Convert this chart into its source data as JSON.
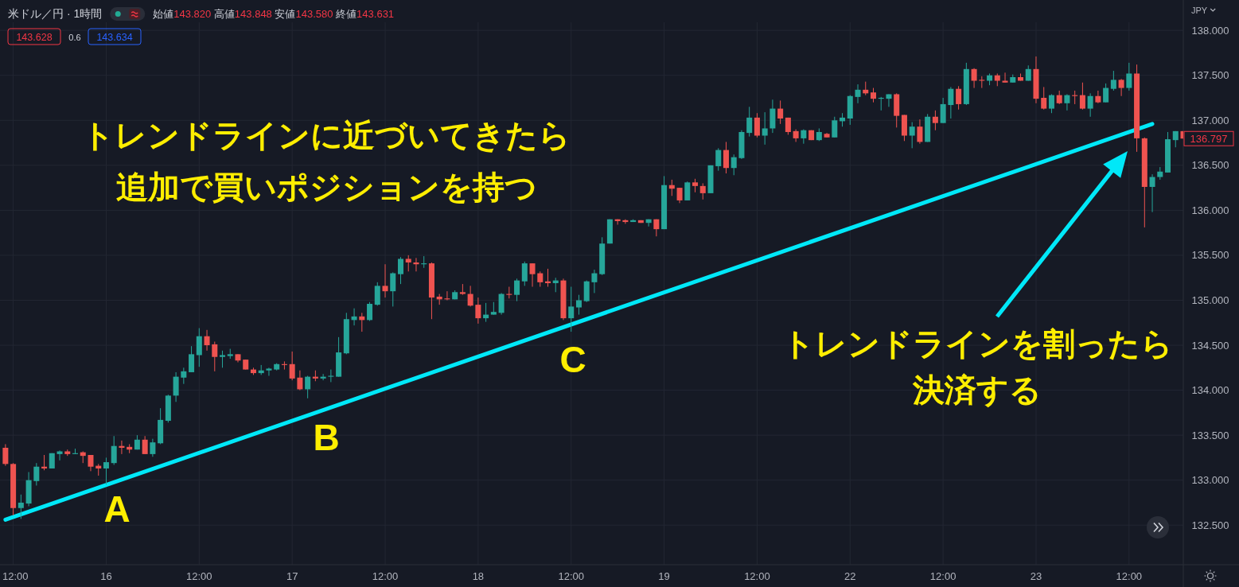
{
  "chart_data": {
    "type": "candlestick",
    "title": "米ドル／円 · 1時間",
    "subtitle": "始値143.820 高値143.848 安値143.580 終値143.631",
    "ylabel": "JPY",
    "categories": [
      null,
      "12:00",
      null,
      null,
      null,
      null,
      null,
      null,
      null,
      null,
      null,
      null,
      null,
      "16",
      null,
      null,
      null,
      null,
      null,
      null,
      null,
      null,
      null,
      null,
      null,
      "12:00",
      null,
      null,
      null,
      null,
      null,
      null,
      null,
      null,
      null,
      null,
      null,
      "17",
      null,
      null,
      null,
      null,
      null,
      null,
      null,
      null,
      null,
      null,
      null,
      "12:00",
      null,
      null,
      null,
      null,
      null,
      null,
      null,
      null,
      null,
      null,
      null,
      "18",
      null,
      null,
      null,
      null,
      null,
      null,
      null,
      null,
      null,
      null,
      null,
      "12:00",
      null,
      null,
      null,
      null,
      null,
      null,
      null,
      null,
      null,
      null,
      null,
      "19",
      null,
      null,
      null,
      null,
      null,
      null,
      null,
      null,
      null,
      null,
      null,
      "12:00",
      null,
      null,
      null,
      null,
      null,
      null,
      null,
      null,
      null,
      null,
      null,
      "22",
      null,
      null,
      null,
      null,
      null,
      null,
      null,
      null,
      null,
      null,
      null,
      "12:00",
      null,
      null,
      null,
      null,
      null,
      null,
      null,
      null,
      null,
      null,
      null,
      "23",
      null,
      null,
      null,
      null,
      null,
      null,
      null,
      null,
      null,
      null,
      null,
      "12:00",
      null,
      null,
      null,
      null,
      null,
      null,
      null
    ],
    "ohlc": [
      [
        133.36,
        133.4,
        133.16,
        133.18
      ],
      [
        133.18,
        133.19,
        132.61,
        132.69
      ],
      [
        132.69,
        132.84,
        132.57,
        132.75
      ],
      [
        132.74,
        133.09,
        132.71,
        133.0
      ],
      [
        132.99,
        133.19,
        132.94,
        133.15
      ],
      [
        133.15,
        133.28,
        133.11,
        133.13
      ],
      [
        133.13,
        133.3,
        133.13,
        133.3
      ],
      [
        133.29,
        133.33,
        133.22,
        133.32
      ],
      [
        133.32,
        133.34,
        133.27,
        133.29
      ],
      [
        133.29,
        133.35,
        133.29,
        133.3
      ],
      [
        133.31,
        133.32,
        133.19,
        133.27
      ],
      [
        133.28,
        133.28,
        133.1,
        133.15
      ],
      [
        133.16,
        133.18,
        133.05,
        133.13
      ],
      [
        133.13,
        133.25,
        132.95,
        133.2
      ],
      [
        133.19,
        133.49,
        133.17,
        133.38
      ],
      [
        133.38,
        133.44,
        133.29,
        133.36
      ],
      [
        133.37,
        133.4,
        133.3,
        133.34
      ],
      [
        133.34,
        133.5,
        133.34,
        133.45
      ],
      [
        133.45,
        133.49,
        133.29,
        133.29
      ],
      [
        133.29,
        133.46,
        133.26,
        133.42
      ],
      [
        133.41,
        133.8,
        133.4,
        133.67
      ],
      [
        133.66,
        133.95,
        133.64,
        133.94
      ],
      [
        133.94,
        134.2,
        133.87,
        134.15
      ],
      [
        134.14,
        134.25,
        134.07,
        134.21
      ],
      [
        134.2,
        134.49,
        134.2,
        134.4
      ],
      [
        134.39,
        134.69,
        134.26,
        134.6
      ],
      [
        134.6,
        134.67,
        134.44,
        134.5
      ],
      [
        134.51,
        134.54,
        134.21,
        134.37
      ],
      [
        134.37,
        134.44,
        134.25,
        134.39
      ],
      [
        134.38,
        134.46,
        134.35,
        134.4
      ],
      [
        134.4,
        134.4,
        134.31,
        134.33
      ],
      [
        134.34,
        134.34,
        134.23,
        134.23
      ],
      [
        134.23,
        134.25,
        134.17,
        134.19
      ],
      [
        134.19,
        134.28,
        134.17,
        134.22
      ],
      [
        134.22,
        134.25,
        134.16,
        134.24
      ],
      [
        134.23,
        134.3,
        134.22,
        134.29
      ],
      [
        134.29,
        134.32,
        134.23,
        134.28
      ],
      [
        134.29,
        134.43,
        134.11,
        134.13
      ],
      [
        134.14,
        134.22,
        134.0,
        134.01
      ],
      [
        134.01,
        134.16,
        133.91,
        134.15
      ],
      [
        134.15,
        134.22,
        134.1,
        134.13
      ],
      [
        134.13,
        134.18,
        134.11,
        134.15
      ],
      [
        134.15,
        134.23,
        134.09,
        134.16
      ],
      [
        134.15,
        134.59,
        134.15,
        134.42
      ],
      [
        134.41,
        134.86,
        134.4,
        134.79
      ],
      [
        134.78,
        134.91,
        134.72,
        134.82
      ],
      [
        134.82,
        134.86,
        134.65,
        134.78
      ],
      [
        134.78,
        134.98,
        134.77,
        134.96
      ],
      [
        134.95,
        135.2,
        134.94,
        135.16
      ],
      [
        135.16,
        135.4,
        135.03,
        135.1
      ],
      [
        135.1,
        135.31,
        134.93,
        135.3
      ],
      [
        135.29,
        135.48,
        135.18,
        135.46
      ],
      [
        135.46,
        135.5,
        135.32,
        135.42
      ],
      [
        135.42,
        135.47,
        135.32,
        135.4
      ],
      [
        135.4,
        135.49,
        135.36,
        135.41
      ],
      [
        135.41,
        135.42,
        134.79,
        135.03
      ],
      [
        135.04,
        135.07,
        134.95,
        135.01
      ],
      [
        135.02,
        135.1,
        135.0,
        135.01
      ],
      [
        135.01,
        135.11,
        135.01,
        135.09
      ],
      [
        135.09,
        135.18,
        135.06,
        135.07
      ],
      [
        135.07,
        135.16,
        134.93,
        134.94
      ],
      [
        134.95,
        135.03,
        134.74,
        134.8
      ],
      [
        134.8,
        134.97,
        134.76,
        134.84
      ],
      [
        134.84,
        134.98,
        134.84,
        134.87
      ],
      [
        134.86,
        135.08,
        134.84,
        135.07
      ],
      [
        135.07,
        135.15,
        135.02,
        135.06
      ],
      [
        135.06,
        135.24,
        134.99,
        135.22
      ],
      [
        135.21,
        135.43,
        135.16,
        135.41
      ],
      [
        135.41,
        135.41,
        135.15,
        135.29
      ],
      [
        135.3,
        135.32,
        135.15,
        135.2
      ],
      [
        135.21,
        135.35,
        135.15,
        135.19
      ],
      [
        135.19,
        135.25,
        135.09,
        135.22
      ],
      [
        135.22,
        135.24,
        134.78,
        134.8
      ],
      [
        134.8,
        135.15,
        134.65,
        134.93
      ],
      [
        134.92,
        135.06,
        134.84,
        135.0
      ],
      [
        134.99,
        135.22,
        134.98,
        135.21
      ],
      [
        135.2,
        135.34,
        135.08,
        135.3
      ],
      [
        135.29,
        135.7,
        135.28,
        135.63
      ],
      [
        135.63,
        135.9,
        135.63,
        135.9
      ],
      [
        135.9,
        135.9,
        135.84,
        135.88
      ],
      [
        135.89,
        135.9,
        135.85,
        135.87
      ],
      [
        135.87,
        135.9,
        135.87,
        135.89
      ],
      [
        135.89,
        135.89,
        135.86,
        135.86
      ],
      [
        135.86,
        135.9,
        135.82,
        135.9
      ],
      [
        135.9,
        135.9,
        135.71,
        135.79
      ],
      [
        135.79,
        136.38,
        135.79,
        136.28
      ],
      [
        136.28,
        136.34,
        136.16,
        136.24
      ],
      [
        136.25,
        136.25,
        136.08,
        136.11
      ],
      [
        136.11,
        136.32,
        136.11,
        136.31
      ],
      [
        136.31,
        136.35,
        136.2,
        136.27
      ],
      [
        136.27,
        136.3,
        136.12,
        136.19
      ],
      [
        136.19,
        136.5,
        136.19,
        136.5
      ],
      [
        136.49,
        136.69,
        136.44,
        136.67
      ],
      [
        136.67,
        136.76,
        136.41,
        136.47
      ],
      [
        136.47,
        136.62,
        136.39,
        136.59
      ],
      [
        136.58,
        136.89,
        136.57,
        136.87
      ],
      [
        136.86,
        137.15,
        136.82,
        137.03
      ],
      [
        137.03,
        137.08,
        136.81,
        136.83
      ],
      [
        136.83,
        137.09,
        136.73,
        136.91
      ],
      [
        136.91,
        137.23,
        136.86,
        137.13
      ],
      [
        137.13,
        137.22,
        136.96,
        137.02
      ],
      [
        137.03,
        137.03,
        136.84,
        136.87
      ],
      [
        136.88,
        136.9,
        136.76,
        136.8
      ],
      [
        136.8,
        136.9,
        136.74,
        136.89
      ],
      [
        136.89,
        136.89,
        136.78,
        136.78
      ],
      [
        136.78,
        136.91,
        136.77,
        136.87
      ],
      [
        136.85,
        136.86,
        136.81,
        136.81
      ],
      [
        136.81,
        137.04,
        136.81,
        137.0
      ],
      [
        136.99,
        137.08,
        136.93,
        137.03
      ],
      [
        137.02,
        137.28,
        136.95,
        137.27
      ],
      [
        137.26,
        137.4,
        137.19,
        137.34
      ],
      [
        137.34,
        137.43,
        137.28,
        137.3
      ],
      [
        137.31,
        137.36,
        137.2,
        137.24
      ],
      [
        137.24,
        137.26,
        137.11,
        137.25
      ],
      [
        137.24,
        137.29,
        137.15,
        137.29
      ],
      [
        137.29,
        137.3,
        136.92,
        137.05
      ],
      [
        137.06,
        137.06,
        136.77,
        136.83
      ],
      [
        136.83,
        136.98,
        136.69,
        136.93
      ],
      [
        136.93,
        137.01,
        136.74,
        136.76
      ],
      [
        136.76,
        137.07,
        136.76,
        137.04
      ],
      [
        137.04,
        137.11,
        136.89,
        136.97
      ],
      [
        136.97,
        137.25,
        136.97,
        137.18
      ],
      [
        137.17,
        137.37,
        137.02,
        137.35
      ],
      [
        137.35,
        137.38,
        137.12,
        137.18
      ],
      [
        137.18,
        137.64,
        137.17,
        137.57
      ],
      [
        137.57,
        137.58,
        137.36,
        137.44
      ],
      [
        137.45,
        137.49,
        137.36,
        137.44
      ],
      [
        137.44,
        137.52,
        137.39,
        137.5
      ],
      [
        137.5,
        137.52,
        137.38,
        137.44
      ],
      [
        137.44,
        137.53,
        137.42,
        137.42
      ],
      [
        137.42,
        137.51,
        137.42,
        137.48
      ],
      [
        137.48,
        137.52,
        137.44,
        137.44
      ],
      [
        137.44,
        137.61,
        137.44,
        137.57
      ],
      [
        137.57,
        137.71,
        137.19,
        137.24
      ],
      [
        137.25,
        137.37,
        137.12,
        137.13
      ],
      [
        137.13,
        137.29,
        137.08,
        137.28
      ],
      [
        137.28,
        137.33,
        137.18,
        137.19
      ],
      [
        137.19,
        137.29,
        137.11,
        137.28
      ],
      [
        137.28,
        137.33,
        137.18,
        137.27
      ],
      [
        137.28,
        137.42,
        137.12,
        137.13
      ],
      [
        137.13,
        137.3,
        137.04,
        137.27
      ],
      [
        137.27,
        137.33,
        137.19,
        137.2
      ],
      [
        137.2,
        137.41,
        137.2,
        137.36
      ],
      [
        137.35,
        137.55,
        137.33,
        137.45
      ],
      [
        137.45,
        137.46,
        137.27,
        137.36
      ],
      [
        137.36,
        137.64,
        137.33,
        137.52
      ],
      [
        137.52,
        137.62,
        136.65,
        136.8
      ],
      [
        136.8,
        136.81,
        135.81,
        136.26
      ],
      [
        136.26,
        136.4,
        135.98,
        136.37
      ],
      [
        136.37,
        136.48,
        136.34,
        136.43
      ],
      [
        136.42,
        136.87,
        136.42,
        136.79
      ],
      [
        136.78,
        136.88,
        136.7,
        136.88
      ],
      [
        136.88,
        136.88,
        136.797,
        136.797
      ]
    ],
    "colors": [
      "#ef5350",
      "#ef5350",
      "#26a69a",
      "#26a69a",
      "#26a69a",
      "#ef5350",
      "#26a69a",
      "#26a69a",
      "#ef5350",
      "#26a69a",
      "#ef5350",
      "#ef5350",
      "#ef5350",
      "#26a69a",
      "#26a69a",
      "#ef5350",
      "#ef5350",
      "#26a69a",
      "#ef5350",
      "#26a69a",
      "#26a69a",
      "#26a69a",
      "#26a69a",
      "#26a69a",
      "#26a69a",
      "#26a69a",
      "#ef5350",
      "#ef5350",
      "#26a69a",
      "#26a69a",
      "#ef5350",
      "#ef5350",
      "#ef5350",
      "#26a69a",
      "#26a69a",
      "#26a69a",
      "#ef5350",
      "#ef5350",
      "#ef5350",
      "#26a69a",
      "#ef5350",
      "#26a69a",
      "#26a69a",
      "#26a69a",
      "#26a69a",
      "#26a69a",
      "#ef5350",
      "#26a69a",
      "#26a69a",
      "#ef5350",
      "#26a69a",
      "#26a69a",
      "#ef5350",
      "#ef5350",
      "#26a69a",
      "#ef5350",
      "#ef5350",
      "#ef5350",
      "#26a69a",
      "#ef5350",
      "#ef5350",
      "#ef5350",
      "#26a69a",
      "#26a69a",
      "#26a69a",
      "#ef5350",
      "#26a69a",
      "#26a69a",
      "#ef5350",
      "#ef5350",
      "#ef5350",
      "#26a69a",
      "#ef5350",
      "#26a69a",
      "#26a69a",
      "#26a69a",
      "#26a69a",
      "#26a69a",
      "#26a69a",
      "#ef5350",
      "#ef5350",
      "#26a69a",
      "#ef5350",
      "#26a69a",
      "#ef5350",
      "#26a69a",
      "#ef5350",
      "#ef5350",
      "#26a69a",
      "#ef5350",
      "#ef5350",
      "#26a69a",
      "#26a69a",
      "#ef5350",
      "#26a69a",
      "#26a69a",
      "#26a69a",
      "#ef5350",
      "#26a69a",
      "#26a69a",
      "#ef5350",
      "#ef5350",
      "#ef5350",
      "#26a69a",
      "#ef5350",
      "#26a69a",
      "#ef5350",
      "#26a69a",
      "#26a69a",
      "#26a69a",
      "#26a69a",
      "#ef5350",
      "#ef5350",
      "#26a69a",
      "#26a69a",
      "#ef5350",
      "#ef5350",
      "#26a69a",
      "#ef5350",
      "#26a69a",
      "#ef5350",
      "#26a69a",
      "#26a69a",
      "#ef5350",
      "#26a69a",
      "#ef5350",
      "#ef5350",
      "#26a69a",
      "#ef5350",
      "#ef5350",
      "#26a69a",
      "#ef5350",
      "#26a69a",
      "#ef5350",
      "#ef5350",
      "#26a69a",
      "#ef5350",
      "#26a69a",
      "#ef5350",
      "#ef5350",
      "#26a69a",
      "#ef5350",
      "#26a69a",
      "#26a69a",
      "#ef5350",
      "#26a69a",
      "#ef5350",
      "#ef5350",
      "#26a69a",
      "#26a69a",
      "#26a69a",
      "#26a69a",
      "#ef5350"
    ],
    "series": [
      {
        "type": "line",
        "color": "#00e8f8",
        "values": [
          132.56,
          null,
          null,
          null,
          null,
          null,
          null,
          null,
          null,
          null,
          null,
          null,
          null,
          null,
          null,
          null,
          null,
          null,
          null,
          null,
          null,
          null,
          null,
          null,
          null,
          null,
          null,
          null,
          null,
          null,
          null,
          null,
          null,
          null,
          null,
          null,
          null,
          null,
          null,
          null,
          null,
          null,
          null,
          null,
          null,
          null,
          null,
          null,
          null,
          null,
          null,
          null,
          null,
          null,
          null,
          null,
          null,
          null,
          null,
          null,
          null,
          null,
          null,
          null,
          null,
          null,
          null,
          null,
          null,
          null,
          null,
          null,
          null,
          null,
          null,
          null,
          null,
          null,
          null,
          null,
          null,
          null,
          null,
          null,
          null,
          null,
          null,
          null,
          null,
          null,
          null,
          null,
          null,
          null,
          null,
          null,
          null,
          null,
          null,
          null,
          null,
          null,
          null,
          null,
          null,
          null,
          null,
          null,
          null,
          null,
          null,
          null,
          null,
          null,
          null,
          null,
          null,
          null,
          null,
          null,
          null,
          null,
          null,
          null,
          null,
          null,
          null,
          null,
          null,
          null,
          null,
          null,
          null,
          null,
          null,
          null,
          null,
          null,
          null,
          null,
          null,
          null,
          null,
          null,
          null,
          null,
          null,
          null,
          136.96,
          null,
          null,
          null,
          null
        ]
      }
    ],
    "ylim": [
      132.06,
      138.09
    ],
    "yticks": [
      {
        "value": 132.5,
        "label": "132.500"
      },
      {
        "value": 133,
        "label": "133.000"
      },
      {
        "value": 133.5,
        "label": "133.500"
      },
      {
        "value": 134,
        "label": "134.000"
      },
      {
        "value": 134.5,
        "label": "134.500"
      },
      {
        "value": 135,
        "label": "135.000"
      },
      {
        "value": 135.5,
        "label": "135.500"
      },
      {
        "value": 136,
        "label": "136.000"
      },
      {
        "value": 136.5,
        "label": "136.500"
      },
      {
        "value": 137,
        "label": "137.000"
      },
      {
        "value": 137.5,
        "label": "137.500"
      },
      {
        "value": 138,
        "label": "138.000"
      }
    ],
    "grid": true,
    "annotations": [
      "トレンドラインに近づいてきたら",
      "追加で買いポジションを持つ",
      "トレンドラインを割ったら",
      "決済する",
      "A",
      "B",
      "C",
      "143.628",
      "0.6",
      "143.634",
      "136.797"
    ]
  }
}
